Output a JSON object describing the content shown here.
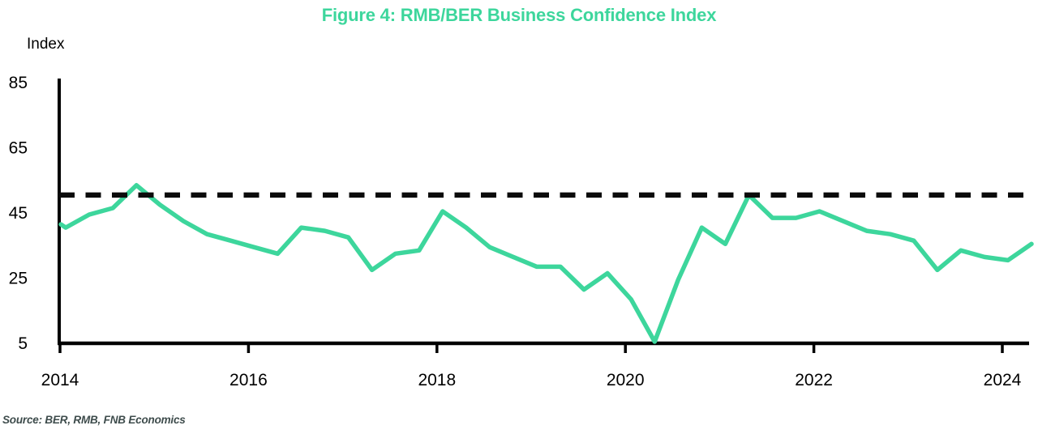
{
  "title": "Figure 4: RMB/BER Business Confidence Index",
  "y_axis_label": "Index",
  "source": "Source: BER, RMB, FNB Economics",
  "colors": {
    "accent_green": "#3dd69c",
    "axis_black": "#000000",
    "reference_black": "#0b0b0b",
    "source_text": "#3e4c4c"
  },
  "chart_data": {
    "type": "line",
    "title": "Figure 4: RMB/BER Business Confidence Index",
    "xlabel": "",
    "ylabel": "Index",
    "ylim": [
      5,
      85
    ],
    "y_ticks": [
      85,
      65,
      45,
      25,
      5
    ],
    "x_ticks": [
      2014,
      2016,
      2018,
      2020,
      2022,
      2024
    ],
    "grid": false,
    "legend": false,
    "reference_line": {
      "value": 50,
      "style": "dashed",
      "color": "#0b0b0b"
    },
    "series": [
      {
        "name": "RMB/BER Business Confidence Index",
        "color": "#3dd69c",
        "frequency": "quarterly",
        "lead_in_value": 41,
        "points": [
          {
            "q": "2014 Q1",
            "v": 40
          },
          {
            "q": "2014 Q2",
            "v": 44
          },
          {
            "q": "2014 Q3",
            "v": 46
          },
          {
            "q": "2014 Q4",
            "v": 53
          },
          {
            "q": "2015 Q1",
            "v": 47
          },
          {
            "q": "2015 Q2",
            "v": 42
          },
          {
            "q": "2015 Q3",
            "v": 38
          },
          {
            "q": "2015 Q4",
            "v": 36
          },
          {
            "q": "2016 Q1",
            "v": 34
          },
          {
            "q": "2016 Q2",
            "v": 32
          },
          {
            "q": "2016 Q3",
            "v": 40
          },
          {
            "q": "2016 Q4",
            "v": 39
          },
          {
            "q": "2017 Q1",
            "v": 37
          },
          {
            "q": "2017 Q2",
            "v": 27
          },
          {
            "q": "2017 Q3",
            "v": 32
          },
          {
            "q": "2017 Q4",
            "v": 33
          },
          {
            "q": "2018 Q1",
            "v": 45
          },
          {
            "q": "2018 Q2",
            "v": 40
          },
          {
            "q": "2018 Q3",
            "v": 34
          },
          {
            "q": "2018 Q4",
            "v": 31
          },
          {
            "q": "2019 Q1",
            "v": 28
          },
          {
            "q": "2019 Q2",
            "v": 28
          },
          {
            "q": "2019 Q3",
            "v": 21
          },
          {
            "q": "2019 Q4",
            "v": 26
          },
          {
            "q": "2020 Q1",
            "v": 18
          },
          {
            "q": "2020 Q2",
            "v": 5
          },
          {
            "q": "2020 Q3",
            "v": 24
          },
          {
            "q": "2020 Q4",
            "v": 40
          },
          {
            "q": "2021 Q1",
            "v": 35
          },
          {
            "q": "2021 Q2",
            "v": 50
          },
          {
            "q": "2021 Q3",
            "v": 43
          },
          {
            "q": "2021 Q4",
            "v": 43
          },
          {
            "q": "2022 Q1",
            "v": 45
          },
          {
            "q": "2022 Q2",
            "v": 42
          },
          {
            "q": "2022 Q3",
            "v": 39
          },
          {
            "q": "2022 Q4",
            "v": 38
          },
          {
            "q": "2023 Q1",
            "v": 36
          },
          {
            "q": "2023 Q2",
            "v": 27
          },
          {
            "q": "2023 Q3",
            "v": 33
          },
          {
            "q": "2023 Q4",
            "v": 31
          },
          {
            "q": "2024 Q1",
            "v": 30
          },
          {
            "q": "2024 Q2",
            "v": 35
          }
        ]
      }
    ]
  }
}
